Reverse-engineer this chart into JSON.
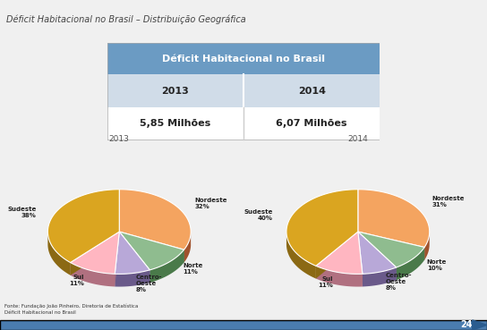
{
  "title": "Déficit Habitacional no Brasil – Distribuição Geográfica",
  "table_header": "Déficit Habitacional no Brasil",
  "table_years": [
    "2013",
    "2014"
  ],
  "table_values": [
    "5,85 Milhões",
    "6,07 Milhões"
  ],
  "pie2013_labels": [
    "Nordeste",
    "Norte",
    "Centro-\nOeste",
    "Sul",
    "Sudeste"
  ],
  "pie2013_sizes": [
    32,
    11,
    8,
    11,
    38
  ],
  "pie2013_pcts": [
    "32%",
    "11%",
    "8%",
    "11%",
    "38%"
  ],
  "pie2014_labels": [
    "Nordeste",
    "Norte",
    "Centro-\nOeste",
    "Sul",
    "Sudeste"
  ],
  "pie2014_sizes": [
    31,
    10,
    8,
    11,
    40
  ],
  "pie2014_pcts": [
    "31%",
    "10%",
    "8%",
    "11%",
    "40%"
  ],
  "pie_colors": [
    "#F4A460",
    "#8FBC8F",
    "#B8A8D8",
    "#FFB6C1",
    "#DAA520"
  ],
  "pie_dark_colors": [
    "#A0522D",
    "#4A7A4A",
    "#6A5A8A",
    "#B07080",
    "#8B6914"
  ],
  "title_bg": "#8BAFC8",
  "title_color": "#444444",
  "table_header_bg": "#6B9BC3",
  "table_header_color": "#FFFFFF",
  "table_row1_bg": "#D0DCE8",
  "table_row2_bg": "#FFFFFF",
  "bg_color": "#F0F0F0",
  "footer_text": "Fonte: Fundação João Pinheiro, Diretoria de Estatística",
  "footer_sub": "Déficit Habitacional no Brasil",
  "page_num": "24",
  "bottom_bar_color": "#4A7CAF"
}
